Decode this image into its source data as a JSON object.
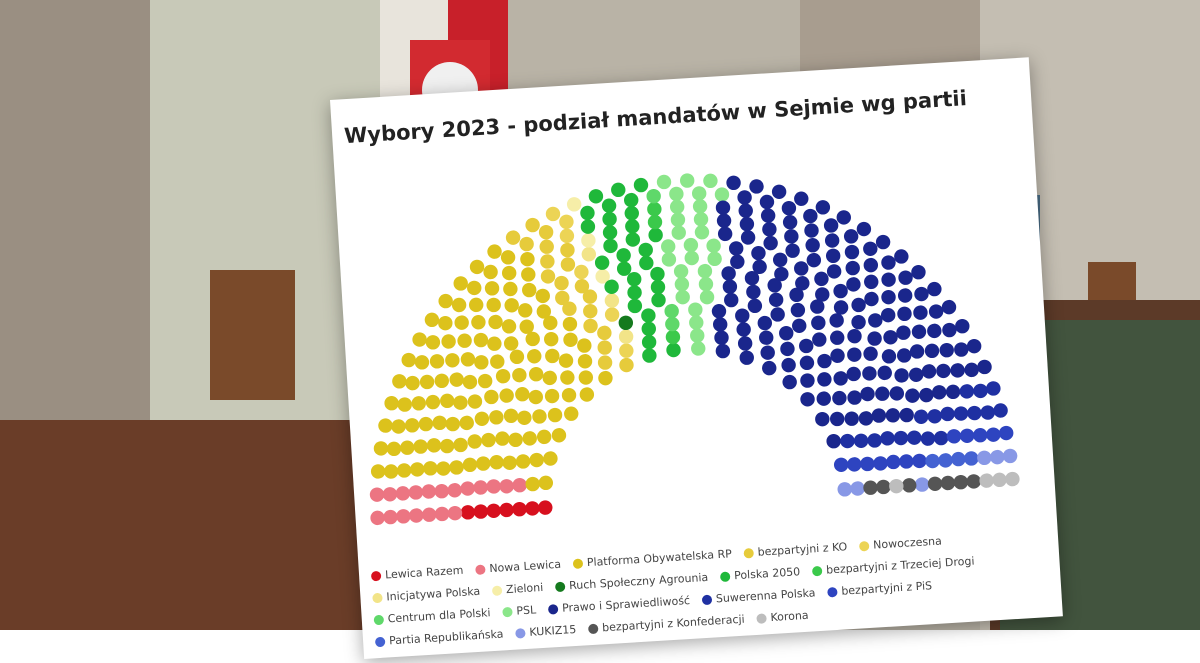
{
  "chart_data": {
    "type": "parliament",
    "title": "Wybory 2023 - podział mandatów w Sejmie wg partii",
    "series": [
      {
        "name": "Lewica Razem",
        "color": "#d7101e",
        "values": [
          7
        ]
      },
      {
        "name": "Nowa Lewica",
        "color": "#ec7582",
        "values": [
          19
        ]
      },
      {
        "name": "Platforma Obywatelska RP",
        "color": "#dcc21c",
        "values": [
          124
        ]
      },
      {
        "name": "bezpartyjni z KO",
        "color": "#e6cb3b",
        "values": [
          20
        ]
      },
      {
        "name": "Nowoczesna",
        "color": "#ecd455",
        "values": [
          6
        ]
      },
      {
        "name": "Inicjatywa Polska",
        "color": "#f2e488",
        "values": [
          3
        ]
      },
      {
        "name": "Zieloni",
        "color": "#f6eea8",
        "values": [
          3
        ]
      },
      {
        "name": "Ruch Społeczny Agrounia",
        "color": "#157a1e",
        "values": [
          1
        ]
      },
      {
        "name": "Polska 2050",
        "color": "#1fb83a",
        "values": [
          31
        ]
      },
      {
        "name": "bezpartyjni z Trzeciej Drogi",
        "color": "#3bc94b",
        "values": [
          3
        ]
      },
      {
        "name": "Centrum dla Polski",
        "color": "#5fd86a",
        "values": [
          3
        ]
      },
      {
        "name": "PSL",
        "color": "#8be68a",
        "values": [
          28
        ]
      },
      {
        "name": "Prawo i Sprawiedliwość",
        "color": "#1a268c",
        "values": [
          154
        ]
      },
      {
        "name": "Suwerenna Polska",
        "color": "#1f30a2",
        "values": [
          18
        ]
      },
      {
        "name": "bezpartyjni z PiS",
        "color": "#2e44c0",
        "values": [
          12
        ]
      },
      {
        "name": "Partia Republikańska",
        "color": "#4462d2",
        "values": [
          4
        ]
      },
      {
        "name": "KUKIZ15",
        "color": "#8898e6",
        "values": [
          6
        ]
      },
      {
        "name": "bezpartyjni z Konfederacji",
        "color": "#555555",
        "values": [
          7
        ]
      },
      {
        "name": "Korona",
        "color": "#bdbdbd",
        "values": [
          4
        ]
      }
    ]
  }
}
